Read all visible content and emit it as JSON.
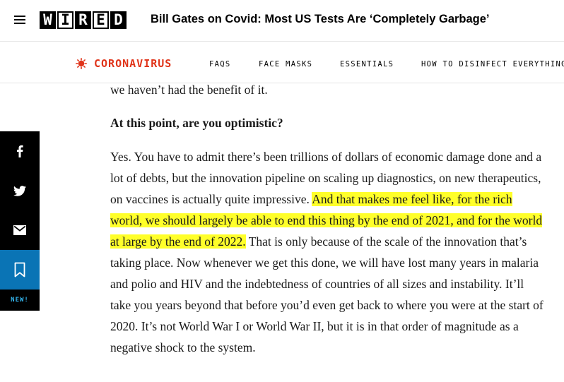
{
  "header": {
    "logo_letters": [
      "W",
      "I",
      "R",
      "E",
      "D"
    ],
    "headline": "Bill Gates on Covid: Most US Tests Are ‘Completely Garbage’"
  },
  "subnav": {
    "tag": "CORONAVIRUS",
    "links": [
      "FAQS",
      "FACE MASKS",
      "ESSENTIALS",
      "HOW TO DISINFECT EVERYTHING"
    ]
  },
  "share_rail": {
    "icons": [
      "facebook-icon",
      "twitter-icon",
      "email-icon",
      "bookmark-icon"
    ],
    "new_label": "NEW!"
  },
  "article": {
    "continuation": "we haven’t had the benefit of it.",
    "question": "At this point, are you optimistic?",
    "answer_before": "Yes. You have to admit there’s been trillions of dollars of economic damage done and a lot of debts, but the innovation pipeline on scaling up diagnostics, on new therapeutics, on vaccines is actually quite impressive. ",
    "answer_highlight": "And that makes me feel like, for the rich world, we should largely be able to end this thing by the end of 2021, and for the world at large by the end of 2022.",
    "answer_after": " That is only because of the scale of the innovation that’s taking place. Now whenever we get this done, we will have lost many years in malaria and polio and HIV and the indebtedness of countries of all sizes and instability. It’ll take you years beyond that before you’d even get back to where you were at the start of 2020. It’s not World War I or World War II, but it is in that order of magnitude as a negative shock to the system."
  },
  "colors": {
    "accent_red": "#e0341a",
    "save_blue": "#0a74b5",
    "new_blue": "#34b6ef",
    "highlight_yellow": "#ffff2a"
  }
}
